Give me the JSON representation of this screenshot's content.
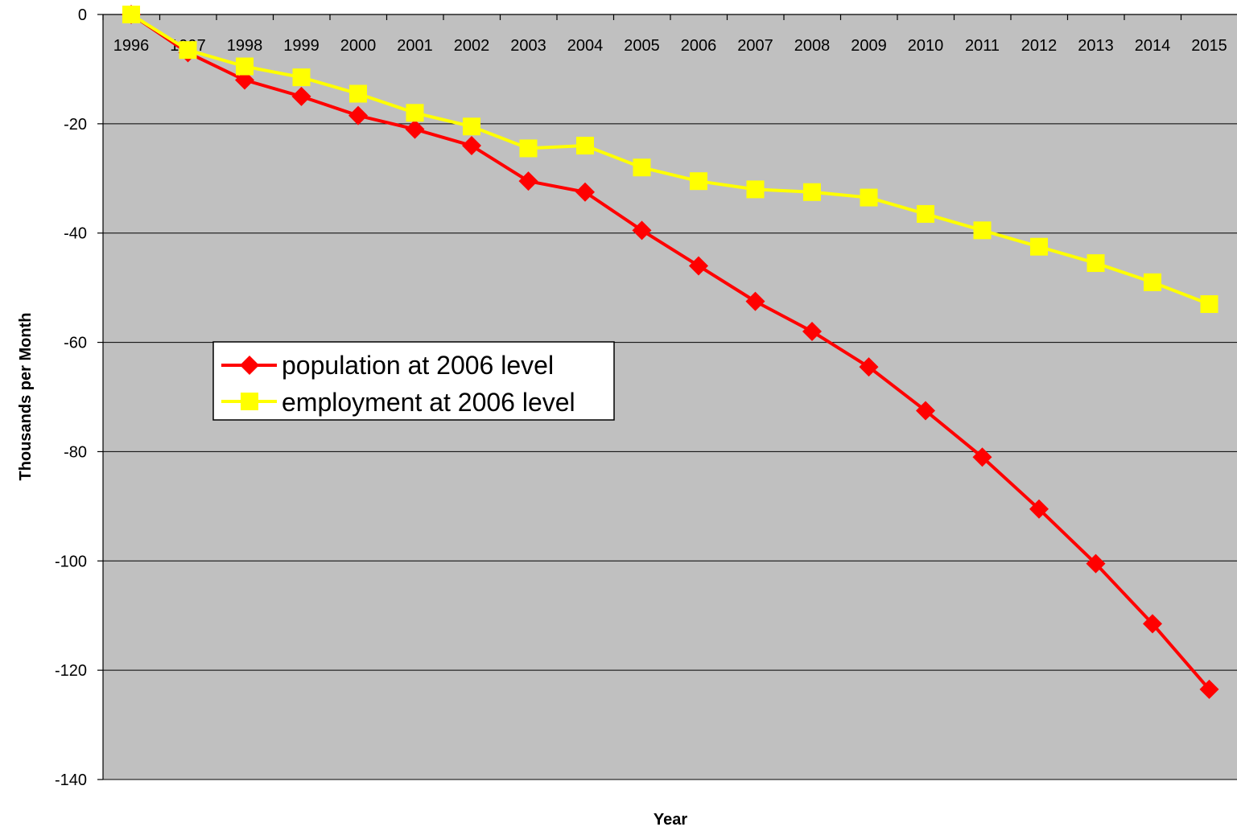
{
  "chart_data": {
    "type": "line",
    "title": "",
    "xlabel": "Year",
    "ylabel": "Thousands per Month",
    "categories": [
      "1996",
      "1997",
      "1998",
      "1999",
      "2000",
      "2001",
      "2002",
      "2003",
      "2004",
      "2005",
      "2006",
      "2007",
      "2008",
      "2009",
      "2010",
      "2011",
      "2012",
      "2013",
      "2014",
      "2015"
    ],
    "ylim": [
      -140,
      0
    ],
    "yticks": [
      0,
      -20,
      -40,
      -60,
      -80,
      -100,
      -120,
      -140
    ],
    "grid": true,
    "legend_position": "left-center",
    "plot_background": "#c0c0c0",
    "series": [
      {
        "name": "population at 2006 level",
        "color": "#ff0000",
        "marker": "diamond",
        "values": [
          0,
          -7,
          -12,
          -15,
          -18.5,
          -21,
          -24,
          -30.5,
          -32.5,
          -39.5,
          -46,
          -52.5,
          -58,
          -64.5,
          -72.5,
          -81,
          -90.5,
          -100.5,
          -111.5,
          -123.5
        ]
      },
      {
        "name": "employment at 2006 level",
        "color": "#ffff00",
        "marker": "square",
        "values": [
          0,
          -6.5,
          -9.5,
          -11.5,
          -14.5,
          -18,
          -20.5,
          -24.5,
          -24,
          -28,
          -30.5,
          -32,
          -32.5,
          -33.5,
          -36.5,
          -39.5,
          -42.5,
          -45.5,
          -49,
          -53
        ]
      }
    ]
  }
}
